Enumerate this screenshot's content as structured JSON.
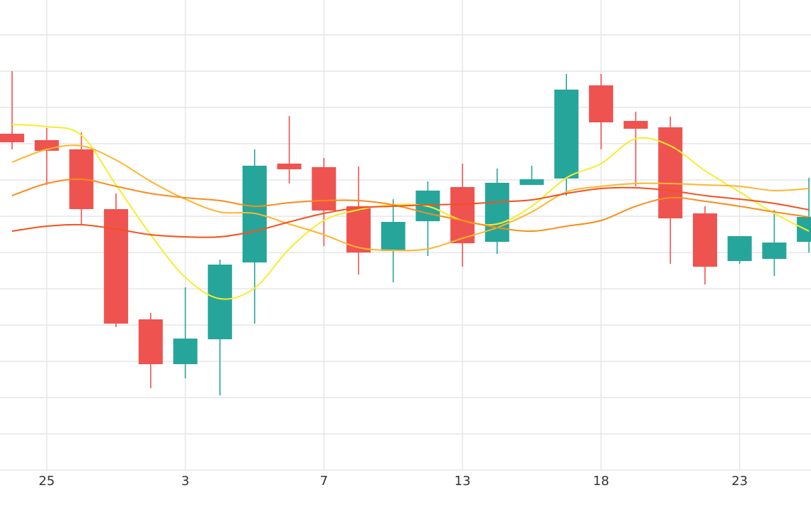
{
  "chart_data": {
    "type": "candlestick",
    "categories": [
      null,
      "25",
      null,
      null,
      null,
      "3",
      null,
      null,
      null,
      "7",
      null,
      null,
      null,
      "13",
      null,
      null,
      null,
      "18",
      null,
      null,
      null,
      "23",
      null,
      null
    ],
    "open": [
      473,
      464,
      451,
      367,
      212,
      149,
      184,
      292,
      431,
      426,
      371,
      308,
      350,
      398,
      321,
      401,
      410,
      541,
      491,
      482,
      361,
      294,
      297,
      321
    ],
    "high": [
      561,
      481,
      475,
      389,
      221,
      257,
      296,
      451,
      498,
      439,
      427,
      381,
      406,
      431,
      424,
      428,
      557,
      557,
      504,
      497,
      371,
      329,
      366,
      411
    ],
    "low": [
      451,
      401,
      346,
      201,
      115,
      129,
      105,
      206,
      403,
      315,
      275,
      264,
      301,
      286,
      304,
      401,
      386,
      451,
      399,
      290,
      261,
      290,
      273,
      306
    ],
    "close": [
      461,
      449,
      367,
      206,
      149,
      185,
      289,
      428,
      423,
      365,
      306,
      349,
      393,
      319,
      404,
      409,
      535,
      489,
      480,
      354,
      286,
      329,
      320,
      356
    ],
    "up_color": "#26a69a",
    "down_color": "#ef5350",
    "lines": [
      {
        "color": "#f7ec2e",
        "values": [
          486,
          483,
          471,
          401,
          331,
          271,
          241,
          256,
          311,
          351,
          366,
          373,
          371,
          351,
          346,
          371,
          411,
          431,
          466,
          456,
          421,
          391,
          361,
          336
        ]
      },
      {
        "color": "#ffb52e",
        "values": [
          433,
          451,
          456,
          436,
          406,
          381,
          363,
          361,
          346,
          331,
          313,
          309,
          311,
          326,
          341,
          363,
          391,
          399,
          403,
          403,
          401,
          399,
          393,
          396
        ]
      },
      {
        "color": "#fb8c1a",
        "values": [
          386,
          403,
          409,
          399,
          389,
          383,
          379,
          371,
          376,
          379,
          379,
          373,
          361,
          351,
          341,
          336,
          343,
          351,
          371,
          383,
          378,
          371,
          363,
          356
        ]
      },
      {
        "color": "#f4511e",
        "values": [
          336,
          343,
          345,
          339,
          331,
          328,
          328,
          336,
          349,
          361,
          369,
          371,
          373,
          374,
          377,
          380,
          389,
          396,
          397,
          393,
          386,
          381,
          375,
          366
        ]
      }
    ],
    "ylim": [
      0,
      661
    ],
    "yticks": [
      51,
      102,
      153,
      204,
      255,
      306,
      357,
      408,
      459,
      510,
      561,
      612
    ],
    "grid": true
  }
}
